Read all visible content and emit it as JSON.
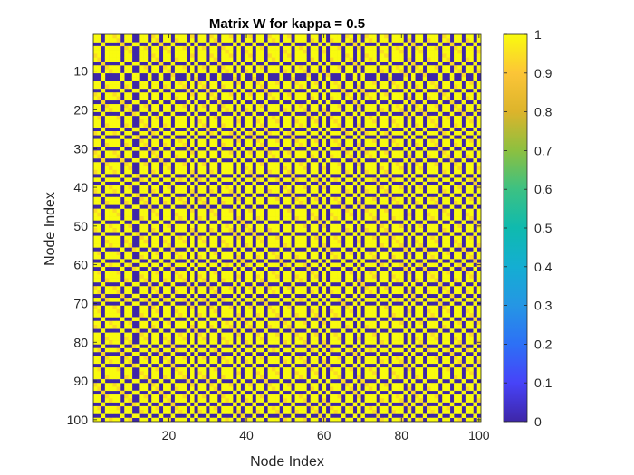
{
  "chart_data": {
    "type": "heatmap",
    "title": "Matrix W for kappa = 0.5",
    "xlabel": "Node Index",
    "ylabel": "Node Index",
    "rows": 100,
    "cols": 100,
    "xlim": [
      0.5,
      100.5
    ],
    "ylim": [
      0.5,
      100.5
    ],
    "y_reversed": true,
    "x_ticks": [
      20,
      40,
      60,
      80,
      100
    ],
    "y_ticks": [
      10,
      20,
      30,
      40,
      50,
      60,
      70,
      80,
      90,
      100
    ],
    "colorbar": {
      "colormap": "parula",
      "clim": [
        0,
        1
      ],
      "ticks": [
        0,
        0.1,
        0.2,
        0.3,
        0.4,
        0.5,
        0.6,
        0.7,
        0.8,
        0.9,
        1
      ],
      "tick_labels": [
        "0",
        "0.1",
        "0.2",
        "0.3",
        "0.4",
        "0.5",
        "0.6",
        "0.7",
        "0.8",
        "0.9",
        "1"
      ],
      "placement": "right"
    },
    "value_levels": [
      0,
      0.9,
      1
    ],
    "colors": {
      "low": "#3E26A8",
      "high": "#F9FB0E",
      "high_alt": "#FADA24"
    },
    "node_states": [
      1,
      1,
      0,
      1,
      1,
      1,
      1,
      0,
      1,
      1,
      0,
      0,
      1,
      1,
      0,
      1,
      1,
      0,
      1,
      1,
      0,
      1,
      1,
      1,
      0,
      1,
      0,
      1,
      1,
      0,
      1,
      1,
      0,
      1,
      1,
      1,
      0,
      1,
      0,
      1,
      1,
      0,
      1,
      1,
      0,
      1,
      1,
      1,
      0,
      1,
      1,
      0,
      1,
      1,
      1,
      0,
      1,
      1,
      0,
      1,
      0,
      1,
      1,
      1,
      0,
      1,
      1,
      0,
      1,
      0,
      1,
      1,
      1,
      0,
      1,
      1,
      0,
      1,
      1,
      1,
      0,
      1,
      0,
      1,
      1,
      0,
      1,
      1,
      1,
      0,
      1,
      1,
      0,
      1,
      1,
      0,
      1,
      1,
      0,
      1
    ],
    "diagonal_value": 1
  }
}
